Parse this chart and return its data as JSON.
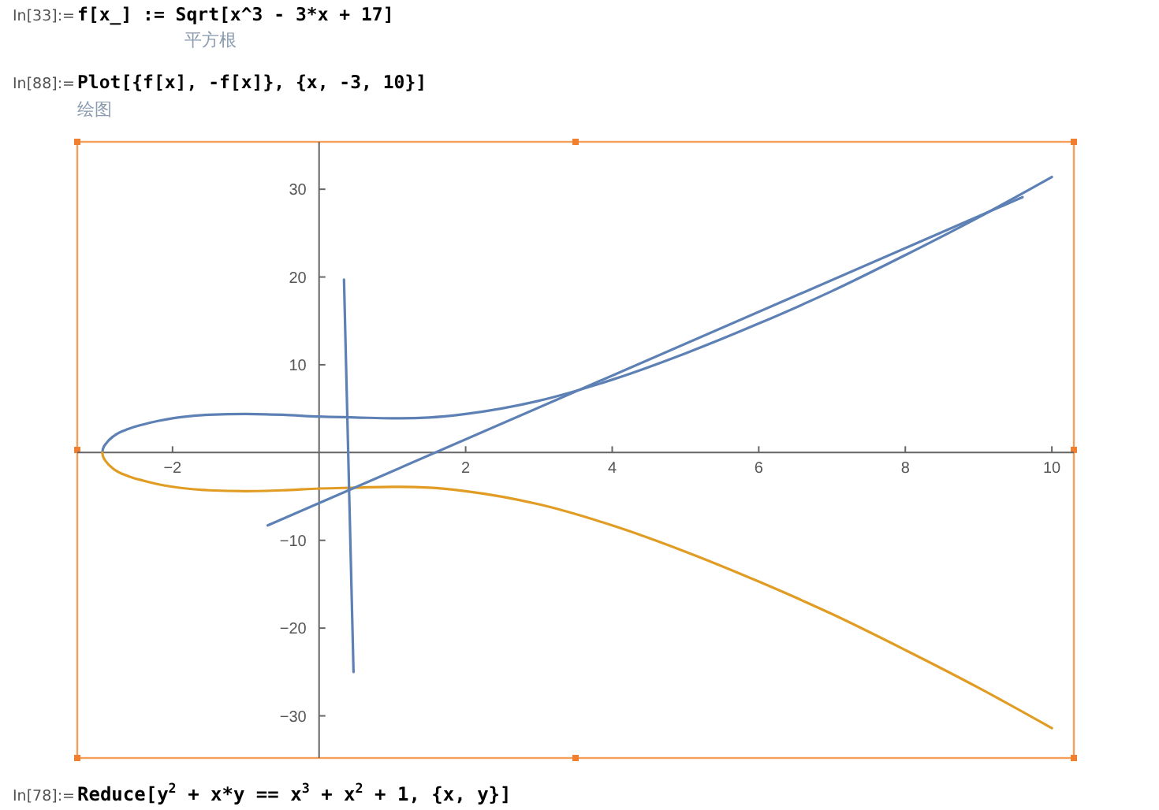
{
  "chart_data": {
    "type": "line",
    "annotations": [
      "In[33]:=",
      "f[x_] := Sqrt[x^3 - 3*x + 17]",
      "平方根",
      "In[88]:=",
      "Plot[{f[x], -f[x]}, {x, -3, 10}]",
      "绘图",
      "In[78]:=",
      "Reduce[y$^{2}$ + x*y == x$^{3}$ + x$^{2}$ + 1, {x, y}]"
    ],
    "xlim": [
      -3.3,
      10.3
    ],
    "ylim": [
      -34.8,
      35.4
    ],
    "xticks": [
      -2,
      2,
      4,
      6,
      8,
      10
    ],
    "yticks": [
      -30,
      -20,
      -10,
      10,
      20,
      30
    ],
    "grid": false,
    "marker": "none",
    "line_style": "solid",
    "series": [
      {
        "color": "#5e81b5",
        "x": [
          -2.958,
          -2.95,
          -2.9,
          -2.8,
          -2.6,
          -2.4,
          -2.2,
          -2,
          -1.5,
          -1,
          -0.5,
          0,
          0.5,
          1,
          1.5,
          2,
          3,
          4,
          5,
          6,
          7,
          8,
          9,
          10
        ],
        "values": [
          0,
          0.4,
          1.1,
          1.9,
          2.7,
          3.2,
          3.6,
          3.9,
          4.3,
          4.4,
          4.3,
          4.1,
          4.0,
          3.9,
          4.0,
          4.4,
          5.9,
          8.3,
          11.3,
          14.7,
          18.4,
          22.5,
          26.8,
          31.4
        ]
      },
      {
        "color": "#e19c24",
        "x": [
          -2.958,
          -2.95,
          -2.9,
          -2.8,
          -2.6,
          -2.4,
          -2.2,
          -2,
          -1.5,
          -1,
          -0.5,
          0,
          0.5,
          1,
          1.5,
          2,
          3,
          4,
          5,
          6,
          7,
          8,
          9,
          10
        ],
        "values": [
          0,
          -0.4,
          -1.1,
          -1.9,
          -2.7,
          -3.2,
          -3.6,
          -3.9,
          -4.3,
          -4.4,
          -4.3,
          -4.1,
          -4.0,
          -3.9,
          -4.0,
          -4.4,
          -5.9,
          -8.3,
          -11.3,
          -14.7,
          -18.4,
          -22.5,
          -26.8,
          -31.4
        ]
      },
      {
        "color": "#5e81b5",
        "x": [
          -0.7,
          9.6
        ],
        "values": [
          -8.3,
          29.1
        ]
      },
      {
        "color": "#5e81b5",
        "x": [
          0.34,
          0.47
        ],
        "values": [
          19.7,
          -25.0
        ]
      }
    ]
  }
}
